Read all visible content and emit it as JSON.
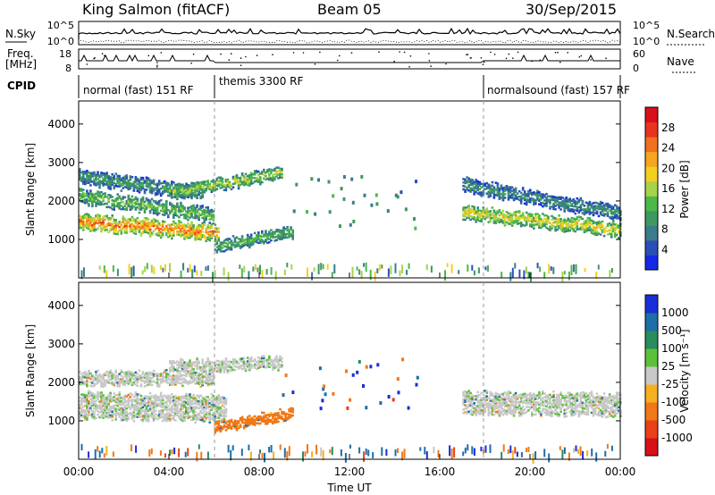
{
  "header": {
    "station": "King Salmon (fitACF)",
    "beam": "Beam 05",
    "date": "30/Sep/2015"
  },
  "labels": {
    "nsky": "N.Sky",
    "nsearch": "N.Search",
    "freq": "Freq.",
    "freq_unit": "[MHz]",
    "nave": "Nave",
    "cpid": "CPID",
    "slant_range": "Slant Range [km]",
    "time_axis": "Time UT",
    "power": "Power [dB]",
    "velocity": "Velocity [m s⁻¹]"
  },
  "noise_panel": {
    "left_ticks": [
      "10^5",
      "10^0"
    ],
    "right_ticks": [
      "10^5",
      "10^0"
    ]
  },
  "freq_panel": {
    "left_ticks": [
      "18",
      "8"
    ],
    "right_ticks": [
      "60",
      "0"
    ]
  },
  "cpid_segments": [
    {
      "label": "normal (fast) 151 RF",
      "start_h": 0.0,
      "end_h": 6.0
    },
    {
      "label": "themis 3300 RF",
      "start_h": 6.0,
      "end_h": 18.0
    },
    {
      "label": "normalsound (fast) 157 RF",
      "start_h": 18.0,
      "end_h": 24.0
    }
  ],
  "colors": {
    "power_scale": [
      "#1428e6",
      "#2a4fb8",
      "#3a7c8c",
      "#3f9860",
      "#4cb84a",
      "#a8d24c",
      "#f2d020",
      "#f6a51e",
      "#f07020",
      "#e8341c",
      "#d8101a"
    ],
    "velocity_scale": [
      "#1a2ed8",
      "#1e6ea8",
      "#2a8c5a",
      "#5cc03a",
      "#c8c8c8",
      "#f4b020",
      "#f07818",
      "#e84018",
      "#d81018"
    ]
  },
  "chart_data": [
    {
      "type": "heatmap",
      "title": "Power",
      "xlabel": "Time UT",
      "ylabel": "Slant Range [km]",
      "xlim": [
        0,
        24
      ],
      "ylim": [
        0,
        4600
      ],
      "x_ticks": [
        "00:00",
        "04:00",
        "08:00",
        "12:00",
        "16:00",
        "20:00",
        "00:00"
      ],
      "y_ticks": [
        1000,
        2000,
        3000,
        4000
      ],
      "colorbar": {
        "label": "Power [dB]",
        "ticks": [
          4,
          8,
          12,
          16,
          20,
          24,
          28
        ],
        "range": [
          0,
          30
        ]
      },
      "bands": [
        {
          "t0": 0.0,
          "t1": 6.2,
          "r0": 1450,
          "r1": 1150,
          "w": 380,
          "v": 21
        },
        {
          "t0": 0.0,
          "t1": 6.0,
          "r0": 2100,
          "r1": 1600,
          "w": 320,
          "v": 12
        },
        {
          "t0": 0.0,
          "t1": 5.5,
          "r0": 2600,
          "r1": 2200,
          "w": 320,
          "v": 9
        },
        {
          "t0": 4.0,
          "t1": 9.0,
          "r0": 2200,
          "r1": 2700,
          "w": 280,
          "v": 14
        },
        {
          "t0": 6.0,
          "t1": 9.5,
          "r0": 800,
          "r1": 1200,
          "w": 280,
          "v": 11
        },
        {
          "t0": 17.0,
          "t1": 24.0,
          "r0": 1700,
          "r1": 1250,
          "w": 350,
          "v": 16
        },
        {
          "t0": 17.0,
          "t1": 24.0,
          "r0": 2400,
          "r1": 1650,
          "w": 320,
          "v": 8
        }
      ]
    },
    {
      "type": "heatmap",
      "title": "Velocity",
      "xlabel": "Time UT",
      "ylabel": "Slant Range [km]",
      "xlim": [
        0,
        24
      ],
      "ylim": [
        0,
        4600
      ],
      "x_ticks": [
        "00:00",
        "04:00",
        "08:00",
        "12:00",
        "16:00",
        "20:00",
        "00:00"
      ],
      "y_ticks": [
        1000,
        2000,
        3000,
        4000
      ],
      "colorbar": {
        "label": "Velocity [m s⁻¹]",
        "ticks": [
          "1000",
          "500",
          "100",
          "25",
          "-25",
          "-100",
          "-500",
          "-1000"
        ]
      },
      "bands": [
        {
          "t0": 0.0,
          "t1": 6.5,
          "r0": 1400,
          "r1": 1300,
          "w": 650,
          "v": 0
        },
        {
          "t0": 0.0,
          "t1": 6.0,
          "r0": 2100,
          "r1": 2100,
          "w": 350,
          "v": 0
        },
        {
          "t0": 4.0,
          "t1": 9.0,
          "r0": 2400,
          "r1": 2500,
          "w": 300,
          "v": 0
        },
        {
          "t0": 6.0,
          "t1": 9.5,
          "r0": 800,
          "r1": 1200,
          "w": 250,
          "v": -300
        },
        {
          "t0": 17.0,
          "t1": 24.0,
          "r0": 1450,
          "r1": 1400,
          "w": 550,
          "v": 0
        }
      ]
    }
  ]
}
